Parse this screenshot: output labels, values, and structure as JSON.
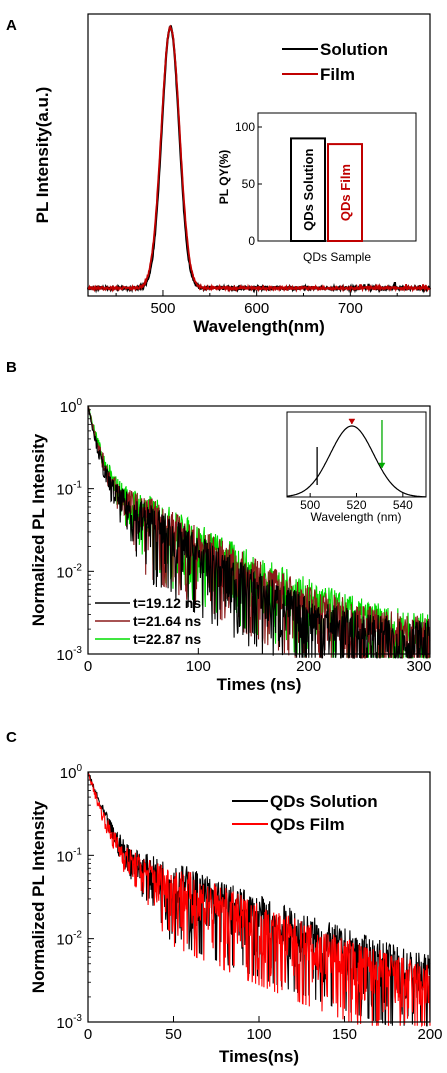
{
  "chart_data": [
    {
      "panel": "A",
      "type": "line",
      "xlabel": "Wavelength(nm)",
      "ylabel": "PL Intensity(a.u.)",
      "xlim": [
        420,
        785
      ],
      "xticks": [
        500,
        600,
        700
      ],
      "ylim": [
        0,
        1.08
      ],
      "peak_nm": 508,
      "legend_position": "top-right",
      "series": [
        {
          "name": "Solution",
          "color": "#000000",
          "peak": 1.0,
          "fwhm": 22
        },
        {
          "name": "Film",
          "color": "#c00000",
          "peak": 1.0,
          "fwhm": 23
        }
      ],
      "inset": {
        "type": "bar",
        "ylabel": "PL QY(%)",
        "xlabel": "QDs Sample",
        "ylim": [
          0,
          100
        ],
        "yticks": [
          "0",
          "50",
          "100"
        ],
        "bars": [
          {
            "label": "QDs Solution",
            "value": 90,
            "color": "#000000"
          },
          {
            "label": "QDs Film",
            "value": 85,
            "color": "#c00000"
          }
        ]
      }
    },
    {
      "panel": "B",
      "type": "line",
      "yscale": "log",
      "xlabel": "Times (ns)",
      "ylabel": "Normalized PL Intensity",
      "xlim": [
        0,
        310
      ],
      "xticks": [
        0,
        100,
        200,
        300
      ],
      "ylim": [
        0.001,
        1
      ],
      "yticks": [
        {
          "base": "10",
          "exp": "0"
        },
        {
          "base": "10",
          "exp": "-1"
        },
        {
          "base": "10",
          "exp": "-2"
        },
        {
          "base": "10",
          "exp": "-3"
        }
      ],
      "legend_position": "bottom-left",
      "series": [
        {
          "name": "t=19.12 ns",
          "color": "#000000",
          "tau": 19.12
        },
        {
          "name": "t=21.64 ns",
          "color": "#8b1a1a",
          "tau": 21.64
        },
        {
          "name": "t=22.87 ns",
          "color": "#00dd00",
          "tau": 22.87
        }
      ],
      "inset": {
        "type": "line",
        "xlabel": "Wavelength (nm)",
        "xlim": [
          490,
          550
        ],
        "xticks": [
          500,
          520,
          540
        ],
        "peak_nm": 518,
        "fwhm": 22,
        "markers": [
          {
            "x": 503,
            "color": "#000000"
          },
          {
            "x": 518,
            "color": "#c00000"
          },
          {
            "x": 531,
            "color": "#00aa00"
          }
        ]
      }
    },
    {
      "panel": "C",
      "type": "line",
      "yscale": "log",
      "xlabel": "Times(ns)",
      "ylabel": "Normalized PL Intensity",
      "xlim": [
        0,
        200
      ],
      "xticks": [
        0,
        50,
        100,
        150,
        200
      ],
      "ylim": [
        0.001,
        1
      ],
      "yticks": [
        {
          "base": "10",
          "exp": "0"
        },
        {
          "base": "10",
          "exp": "-1"
        },
        {
          "base": "10",
          "exp": "-2"
        },
        {
          "base": "10",
          "exp": "-3"
        }
      ],
      "legend_position": "top-right",
      "series": [
        {
          "name": "QDs Solution",
          "color": "#000000",
          "tau": 20.5
        },
        {
          "name": "QDs Film",
          "color": "#ff0000",
          "tau": 18.5
        }
      ]
    }
  ]
}
